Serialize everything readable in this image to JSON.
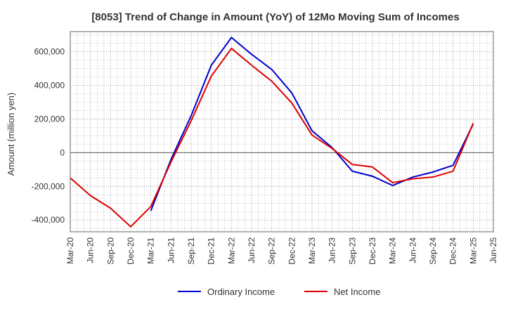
{
  "chart_data": {
    "type": "line",
    "title": "[8053]  Trend of Change in Amount (YoY) of 12Mo Moving Sum of Incomes",
    "xlabel": "",
    "ylabel": "Amount (million yen)",
    "ylim": [
      -470000,
      720000
    ],
    "yticks": [
      -400000,
      -200000,
      0,
      200000,
      400000,
      600000
    ],
    "ytick_labels": [
      "-400,000",
      "-200,000",
      "0",
      "200,000",
      "400,000",
      "600,000"
    ],
    "categories": [
      "Mar-20",
      "Jun-20",
      "Sep-20",
      "Dec-20",
      "Mar-21",
      "Jun-21",
      "Sep-21",
      "Dec-21",
      "Mar-22",
      "Jun-22",
      "Sep-22",
      "Dec-22",
      "Mar-23",
      "Jun-23",
      "Sep-23",
      "Dec-23",
      "Mar-24",
      "Jun-24",
      "Sep-24",
      "Dec-24",
      "Mar-25",
      "Jun-25"
    ],
    "grid": true,
    "legend_position": "bottom-center",
    "series": [
      {
        "name": "Ordinary Income",
        "color": "#0000cc",
        "values": [
          null,
          null,
          null,
          null,
          -345000,
          -40000,
          220000,
          520000,
          685000,
          585000,
          495000,
          355000,
          130000,
          30000,
          -110000,
          -140000,
          -195000,
          -145000,
          -115000,
          -75000,
          170000,
          null
        ]
      },
      {
        "name": "Net Income",
        "color": "#dd0000",
        "values": [
          -150000,
          -255000,
          -330000,
          -440000,
          -320000,
          -55000,
          190000,
          455000,
          620000,
          520000,
          425000,
          295000,
          105000,
          25000,
          -70000,
          -85000,
          -178000,
          -155000,
          -145000,
          -110000,
          175000,
          null
        ]
      }
    ]
  }
}
